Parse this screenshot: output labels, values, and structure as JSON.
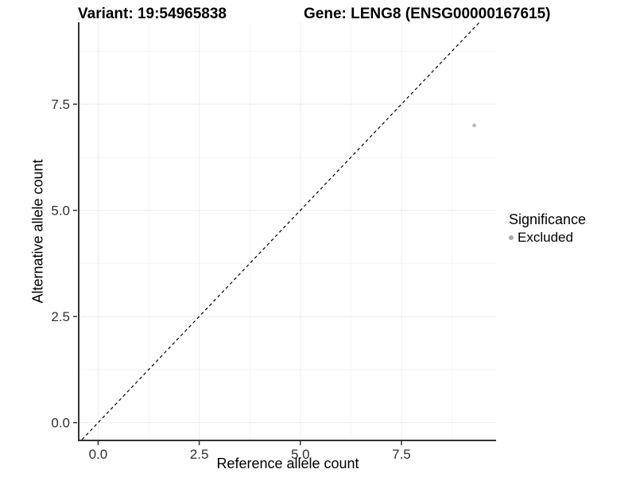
{
  "figure": {
    "titles": {
      "variant": "Variant: 19:54965838",
      "gene": "Gene: LENG8 (ENSG00000167615)"
    }
  },
  "chart_data": {
    "type": "scatter",
    "title": "Variant: 19:54965838 | Gene: LENG8 (ENSG00000167615)",
    "xlabel": "Reference allele count",
    "ylabel": "Alternative allele count",
    "xlim": [
      -0.46,
      9.84
    ],
    "ylim": [
      -0.4,
      9.43
    ],
    "x_ticks": [
      0,
      2.5,
      5,
      7.5
    ],
    "x_tick_labels": [
      "0.0",
      "2.5",
      "5.0",
      "7.5"
    ],
    "y_ticks": [
      0,
      2.5,
      5,
      7.5
    ],
    "y_tick_labels": [
      "0.0",
      "2.5",
      "5.0",
      "7.5"
    ],
    "x_minor_ticks": [
      1.25,
      3.75,
      6.25,
      8.75
    ],
    "y_minor_ticks": [
      1.25,
      3.75,
      6.25,
      8.75
    ],
    "grid": true,
    "legend_position": "right",
    "reference_line": {
      "type": "identity y=x",
      "style": "dashed",
      "color": "#000000"
    },
    "series": [
      {
        "name": "Excluded",
        "color": "#b5b5b5",
        "point_radius": 2.3,
        "points": [
          {
            "x": 9.3,
            "y": 7.0
          }
        ]
      }
    ],
    "legend": {
      "title": "Significance",
      "items": [
        {
          "label": "Excluded",
          "color": "#aaaaaa"
        }
      ]
    },
    "style": {
      "grid_major": "#ececec",
      "grid_minor": "#f5f5f5",
      "axis_color": "#333333",
      "tick_color": "#333333",
      "tick_label_color": "#303030",
      "background": "#ffffff",
      "dash_pattern": "4 3.5"
    }
  }
}
